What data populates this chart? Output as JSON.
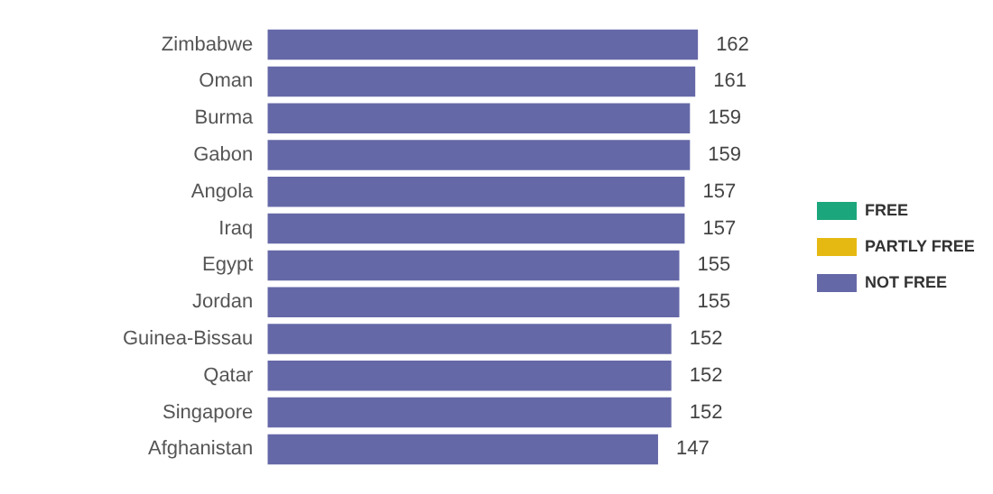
{
  "chart_data": {
    "type": "bar",
    "orientation": "horizontal",
    "categories": [
      "Zimbabwe",
      "Oman",
      "Burma",
      "Gabon",
      "Angola",
      "Iraq",
      "Egypt",
      "Jordan",
      "Guinea-Bissau",
      "Qatar",
      "Singapore",
      "Afghanistan"
    ],
    "series": [
      {
        "name": "FREE",
        "color": "#1ba67b",
        "values": [
          null,
          null,
          null,
          null,
          null,
          null,
          null,
          null,
          null,
          null,
          null,
          null
        ]
      },
      {
        "name": "PARTLY FREE",
        "color": "#e5b911",
        "values": [
          null,
          null,
          null,
          null,
          null,
          null,
          null,
          null,
          null,
          null,
          null,
          null
        ]
      },
      {
        "name": "NOT FREE",
        "color": "#6568a7",
        "values": [
          162,
          161,
          159,
          159,
          157,
          157,
          155,
          155,
          152,
          152,
          152,
          147
        ]
      }
    ],
    "data_labels": true,
    "legend": "right",
    "tick_labels": "y",
    "grid": false
  }
}
